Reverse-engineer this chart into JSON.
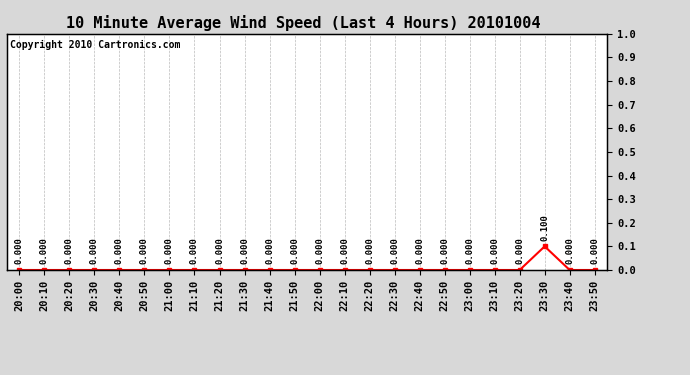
{
  "title": "10 Minute Average Wind Speed (Last 4 Hours) 20101004",
  "copyright_text": "Copyright 2010 Cartronics.com",
  "background_color": "#d8d8d8",
  "plot_bg_color": "#ffffff",
  "line_color": "#ff0000",
  "grid_color": "#aaaaaa",
  "time_labels": [
    "20:00",
    "20:10",
    "20:20",
    "20:30",
    "20:40",
    "20:50",
    "21:00",
    "21:10",
    "21:20",
    "21:30",
    "21:40",
    "21:50",
    "22:00",
    "22:10",
    "22:20",
    "22:30",
    "22:40",
    "22:50",
    "23:00",
    "23:10",
    "23:20",
    "23:30",
    "23:40",
    "23:50"
  ],
  "values": [
    0.0,
    0.0,
    0.0,
    0.0,
    0.0,
    0.0,
    0.0,
    0.0,
    0.0,
    0.0,
    0.0,
    0.0,
    0.0,
    0.0,
    0.0,
    0.0,
    0.0,
    0.0,
    0.0,
    0.0,
    0.0,
    0.1,
    0.0,
    0.0
  ],
  "ylim": [
    0.0,
    1.0
  ],
  "yticks": [
    0.0,
    0.1,
    0.2,
    0.3,
    0.4,
    0.5,
    0.6,
    0.7,
    0.8,
    0.9,
    1.0
  ],
  "title_fontsize": 11,
  "tick_fontsize": 7.5,
  "annot_fontsize": 6.5,
  "copyright_fontsize": 7
}
